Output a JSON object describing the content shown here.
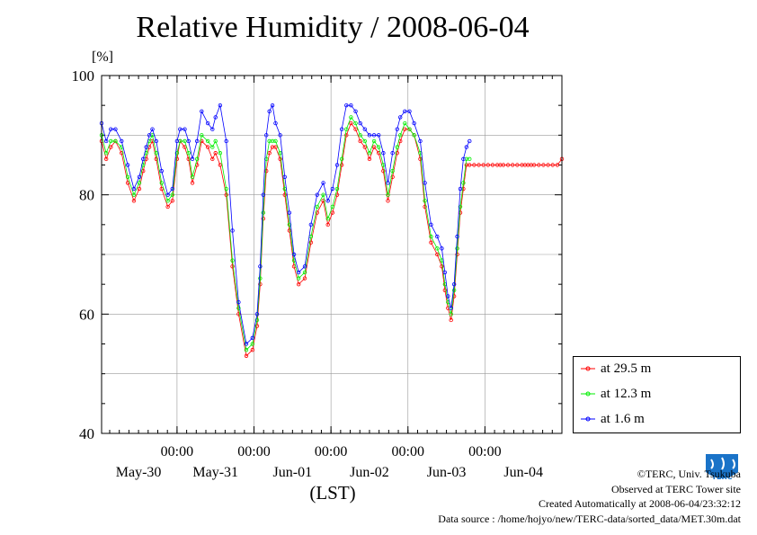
{
  "title": "Relative Humidity / 2008-06-04",
  "unit_label": "[%]",
  "x_axis_label": "(LST)",
  "credits": [
    "©TERC, Univ. Tsukuba",
    "Observed at TERC Tower site",
    "Created Automatically at 2008-06-04/23:32:12",
    "Data source : /home/hojyo/new/TERC-data/sorted_data/MET.30m.dat"
  ],
  "logo_text": "TERC",
  "chart_data": {
    "type": "line",
    "ylim": [
      40,
      100
    ],
    "yticks": [
      40,
      60,
      80,
      100
    ],
    "xlim": [
      -0.98,
      5.0
    ],
    "midnight_ticks": [
      0,
      1,
      2,
      3,
      4
    ],
    "midnight_tick_label": "00:00",
    "day_labels": [
      {
        "pos": -0.5,
        "text": "May-30"
      },
      {
        "pos": 0.5,
        "text": "May-31"
      },
      {
        "pos": 1.5,
        "text": "Jun-01"
      },
      {
        "pos": 2.5,
        "text": "Jun-02"
      },
      {
        "pos": 3.5,
        "text": "Jun-03"
      },
      {
        "pos": 4.5,
        "text": "Jun-04"
      }
    ],
    "grid": true,
    "legend_position": "right",
    "series": [
      {
        "name": "at 29.5 m",
        "color": "#ff0000",
        "x": [
          -0.98,
          -0.92,
          -0.86,
          -0.8,
          -0.72,
          -0.64,
          -0.56,
          -0.49,
          -0.44,
          -0.4,
          -0.36,
          -0.32,
          -0.27,
          -0.2,
          -0.12,
          -0.06,
          0.0,
          0.04,
          0.1,
          0.15,
          0.2,
          0.26,
          0.32,
          0.4,
          0.46,
          0.5,
          0.56,
          0.64,
          0.72,
          0.8,
          0.9,
          0.98,
          1.04,
          1.08,
          1.12,
          1.16,
          1.2,
          1.24,
          1.28,
          1.34,
          1.4,
          1.46,
          1.52,
          1.58,
          1.66,
          1.74,
          1.82,
          1.9,
          1.96,
          2.02,
          2.08,
          2.14,
          2.2,
          2.26,
          2.32,
          2.38,
          2.44,
          2.5,
          2.56,
          2.62,
          2.68,
          2.74,
          2.8,
          2.86,
          2.9,
          2.96,
          3.02,
          3.08,
          3.16,
          3.22,
          3.3,
          3.38,
          3.44,
          3.48,
          3.52,
          3.56,
          3.6,
          3.64,
          3.68,
          3.72,
          3.76,
          3.8,
          3.86,
          3.92,
          3.98,
          4.04,
          4.1,
          4.16,
          4.2,
          4.24,
          4.3,
          4.36,
          4.42,
          4.48,
          4.52,
          4.56,
          4.6,
          4.64,
          4.7,
          4.76,
          4.82,
          4.88,
          4.94,
          5.0
        ],
        "values": [
          89,
          86,
          88,
          89,
          87,
          82,
          79,
          81,
          84,
          86,
          88,
          89,
          86,
          81,
          78,
          79,
          86,
          89,
          88,
          86,
          82,
          85,
          89,
          88,
          86,
          87,
          85,
          80,
          68,
          60,
          53,
          54,
          58,
          65,
          76,
          84,
          87,
          88,
          88,
          86,
          80,
          74,
          68,
          65,
          66,
          72,
          77,
          79,
          75,
          77,
          80,
          85,
          90,
          92,
          91,
          89,
          88,
          86,
          88,
          87,
          84,
          79,
          83,
          87,
          89,
          91,
          91,
          90,
          86,
          78,
          72,
          70,
          68,
          64,
          61,
          59,
          63,
          70,
          77,
          81,
          85,
          85,
          85,
          85,
          85,
          85,
          85,
          85,
          85,
          85,
          85,
          85,
          85,
          85,
          85,
          85,
          85,
          85,
          85,
          85,
          85,
          85,
          85,
          86
        ]
      },
      {
        "name": "at 12.3 m",
        "color": "#00ee00",
        "x": [
          -0.98,
          -0.92,
          -0.86,
          -0.8,
          -0.72,
          -0.64,
          -0.56,
          -0.49,
          -0.44,
          -0.4,
          -0.36,
          -0.32,
          -0.27,
          -0.2,
          -0.12,
          -0.06,
          0.0,
          0.04,
          0.1,
          0.15,
          0.2,
          0.26,
          0.32,
          0.4,
          0.46,
          0.5,
          0.56,
          0.64,
          0.72,
          0.8,
          0.9,
          0.98,
          1.04,
          1.08,
          1.12,
          1.16,
          1.2,
          1.24,
          1.28,
          1.34,
          1.4,
          1.46,
          1.52,
          1.58,
          1.66,
          1.74,
          1.82,
          1.9,
          1.96,
          2.02,
          2.08,
          2.14,
          2.2,
          2.26,
          2.32,
          2.38,
          2.44,
          2.5,
          2.56,
          2.62,
          2.68,
          2.74,
          2.8,
          2.86,
          2.9,
          2.96,
          3.02,
          3.08,
          3.16,
          3.22,
          3.3,
          3.38,
          3.44,
          3.48,
          3.52,
          3.56,
          3.6,
          3.64,
          3.68,
          3.72,
          3.76,
          3.8
        ],
        "values": [
          90,
          87,
          89,
          89,
          88,
          83,
          80,
          82,
          85,
          87,
          89,
          90,
          87,
          82,
          79,
          80,
          87,
          89,
          89,
          87,
          83,
          86,
          90,
          89,
          88,
          89,
          87,
          81,
          69,
          61,
          54,
          55,
          59,
          66,
          77,
          86,
          89,
          89,
          89,
          87,
          81,
          75,
          69,
          66,
          67,
          73,
          78,
          80,
          76,
          78,
          81,
          86,
          91,
          93,
          92,
          90,
          89,
          87,
          89,
          88,
          85,
          80,
          84,
          88,
          90,
          92,
          91,
          90,
          87,
          79,
          73,
          71,
          69,
          65,
          62,
          60,
          64,
          71,
          78,
          82,
          86,
          86
        ]
      },
      {
        "name": "at 1.6 m",
        "color": "#0000ff",
        "x": [
          -0.98,
          -0.92,
          -0.86,
          -0.8,
          -0.72,
          -0.64,
          -0.56,
          -0.49,
          -0.44,
          -0.4,
          -0.36,
          -0.32,
          -0.27,
          -0.2,
          -0.12,
          -0.06,
          0.0,
          0.04,
          0.1,
          0.15,
          0.2,
          0.26,
          0.32,
          0.4,
          0.46,
          0.5,
          0.56,
          0.64,
          0.72,
          0.8,
          0.9,
          0.98,
          1.04,
          1.08,
          1.12,
          1.16,
          1.2,
          1.24,
          1.28,
          1.34,
          1.4,
          1.46,
          1.52,
          1.58,
          1.66,
          1.74,
          1.82,
          1.9,
          1.96,
          2.02,
          2.08,
          2.14,
          2.2,
          2.26,
          2.32,
          2.38,
          2.44,
          2.5,
          2.56,
          2.62,
          2.68,
          2.74,
          2.8,
          2.86,
          2.9,
          2.96,
          3.02,
          3.08,
          3.16,
          3.22,
          3.3,
          3.38,
          3.44,
          3.48,
          3.52,
          3.56,
          3.6,
          3.64,
          3.68,
          3.72,
          3.76,
          3.8
        ],
        "values": [
          92,
          89,
          91,
          91,
          89,
          85,
          81,
          83,
          86,
          88,
          90,
          91,
          89,
          84,
          80,
          81,
          89,
          91,
          91,
          89,
          86,
          89,
          94,
          92,
          91,
          93,
          95,
          89,
          74,
          62,
          55,
          56,
          60,
          68,
          80,
          90,
          94,
          95,
          92,
          90,
          83,
          77,
          70,
          67,
          68,
          75,
          80,
          82,
          79,
          81,
          85,
          91,
          95,
          95,
          94,
          92,
          91,
          90,
          90,
          90,
          87,
          82,
          87,
          91,
          93,
          94,
          94,
          92,
          89,
          82,
          75,
          73,
          71,
          67,
          63,
          61,
          65,
          73,
          81,
          86,
          88,
          89
        ]
      }
    ]
  }
}
